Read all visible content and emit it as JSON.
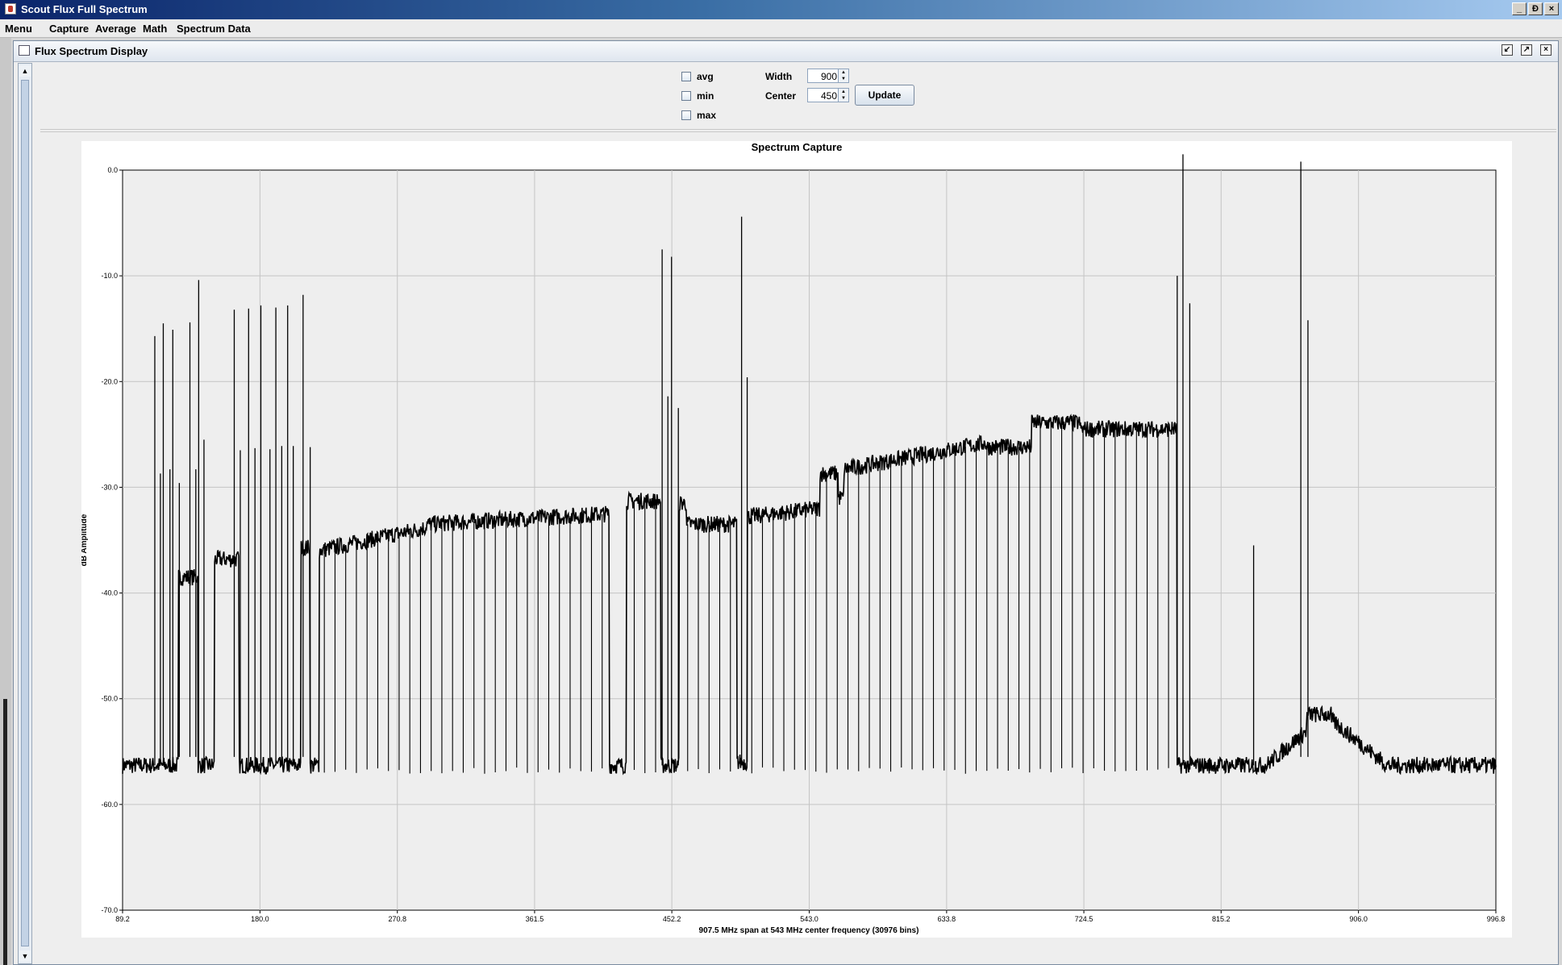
{
  "window": {
    "title": "Scout Flux Full Spectrum",
    "buttons": [
      "_",
      "Ɖ",
      "×"
    ]
  },
  "menu": {
    "items": [
      "Menu",
      "Capture",
      "Average",
      "Math",
      "Spectrum Data"
    ]
  },
  "internal_frame": {
    "title": "Flux Spectrum Display"
  },
  "controls": {
    "checkboxes": [
      {
        "label": "avg",
        "checked": false
      },
      {
        "label": "min",
        "checked": false
      },
      {
        "label": "max",
        "checked": false
      }
    ],
    "width_label": "Width",
    "width_value": "900",
    "center_label": "Center",
    "center_value": "450",
    "update_label": "Update"
  },
  "chart_data": {
    "type": "line",
    "title": "Spectrum Capture",
    "xlabel": "907.5 MHz span at 543 MHz center frequency (30976 bins)",
    "ylabel": "dB Amplitude",
    "xlim": [
      89.2,
      996.8
    ],
    "ylim": [
      -70,
      0
    ],
    "xticks": [
      "89.2",
      "180.0",
      "270.8",
      "361.5",
      "452.2",
      "543.0",
      "633.8",
      "724.5",
      "815.2",
      "906.0",
      "996.8"
    ],
    "yticks": [
      "0.0",
      "-10.0",
      "-20.0",
      "-30.0",
      "-40.0",
      "-50.0",
      "-60.0",
      "-70.0"
    ],
    "grid": true,
    "legend": "none",
    "series_color": "#000000",
    "segments": [
      {
        "from": 89.2,
        "to": 126,
        "level": -56.3
      },
      {
        "from": 126,
        "to": 139,
        "level": -38.5
      },
      {
        "from": 139,
        "to": 150,
        "level": -56.3
      },
      {
        "from": 150,
        "to": 166,
        "level": -36.8
      },
      {
        "from": 166,
        "to": 207,
        "level": -56.3
      },
      {
        "from": 207,
        "to": 213,
        "level": -35.7
      },
      {
        "from": 213,
        "to": 219,
        "level": -56.3
      },
      {
        "from": 219,
        "to": 290,
        "level_start": -36,
        "level_end": -33.8
      },
      {
        "from": 290,
        "to": 411,
        "level_start": -33.5,
        "level_end": -32.5
      },
      {
        "from": 411,
        "to": 422,
        "level": -56.3
      },
      {
        "from": 422,
        "to": 445,
        "level": -31.3
      },
      {
        "from": 445,
        "to": 457,
        "level": -56.3
      },
      {
        "from": 457,
        "to": 462,
        "level": -31.5
      },
      {
        "from": 462,
        "to": 495,
        "level": -33.5
      },
      {
        "from": 495,
        "to": 502,
        "level": -56
      },
      {
        "from": 502,
        "to": 550,
        "level_start": -32.8,
        "level_end": -32.0
      },
      {
        "from": 550,
        "to": 562,
        "level": -28.7
      },
      {
        "from": 562,
        "to": 566,
        "level": -31
      },
      {
        "from": 566,
        "to": 660,
        "level_start": -28.3,
        "level_end": -25.8
      },
      {
        "from": 660,
        "to": 690,
        "level": -26.2
      },
      {
        "from": 690,
        "to": 722,
        "level": -23.9
      },
      {
        "from": 722,
        "to": 786,
        "level": -24.5
      },
      {
        "from": 786,
        "to": 845,
        "level": -56.3
      },
      {
        "from": 845,
        "to": 872,
        "level_start": -56.3,
        "level_end": -53
      },
      {
        "from": 872,
        "to": 888,
        "level": -51.5
      },
      {
        "from": 888,
        "to": 925,
        "level_start": -52,
        "level_end": -56.3
      },
      {
        "from": 925,
        "to": 996.8,
        "level": -56.3
      }
    ],
    "dips": {
      "count": 80,
      "from": 219,
      "to": 784,
      "depth": -56.5
    },
    "spikes": [
      {
        "x": 110.5,
        "y": -15.7
      },
      {
        "x": 114.2,
        "y": -28.7
      },
      {
        "x": 116.1,
        "y": -14.5
      },
      {
        "x": 120.5,
        "y": -28.3
      },
      {
        "x": 122.4,
        "y": -15.1
      },
      {
        "x": 126.7,
        "y": -29.6
      },
      {
        "x": 133.7,
        "y": -14.4
      },
      {
        "x": 137.6,
        "y": -28.3
      },
      {
        "x": 139.5,
        "y": -10.4
      },
      {
        "x": 143.0,
        "y": -25.5
      },
      {
        "x": 163.0,
        "y": -13.2
      },
      {
        "x": 167.0,
        "y": -26.5
      },
      {
        "x": 172.5,
        "y": -13.1
      },
      {
        "x": 176.7,
        "y": -26.3
      },
      {
        "x": 180.6,
        "y": -12.8
      },
      {
        "x": 186.6,
        "y": -26.4
      },
      {
        "x": 190.5,
        "y": -13.0
      },
      {
        "x": 194.4,
        "y": -26.1
      },
      {
        "x": 198.3,
        "y": -12.8
      },
      {
        "x": 202.0,
        "y": -26.1
      },
      {
        "x": 208.5,
        "y": -11.8
      },
      {
        "x": 213.2,
        "y": -26.2
      },
      {
        "x": 445.8,
        "y": -7.5
      },
      {
        "x": 449.6,
        "y": -21.4
      },
      {
        "x": 452.0,
        "y": -8.2
      },
      {
        "x": 456.5,
        "y": -22.5
      },
      {
        "x": 498.3,
        "y": -4.4
      },
      {
        "x": 502.0,
        "y": -19.6
      },
      {
        "x": 786.2,
        "y": -10.0
      },
      {
        "x": 790.0,
        "y": 1.5
      },
      {
        "x": 794.5,
        "y": -12.6
      },
      {
        "x": 836.7,
        "y": -35.5
      },
      {
        "x": 867.9,
        "y": 0.8
      },
      {
        "x": 872.6,
        "y": -14.2
      }
    ]
  }
}
